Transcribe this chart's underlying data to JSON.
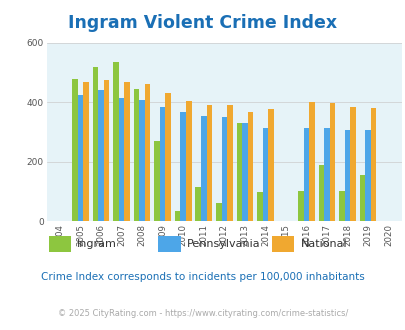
{
  "title": "Ingram Violent Crime Index",
  "years": [
    2004,
    2005,
    2006,
    2007,
    2008,
    2009,
    2010,
    2011,
    2012,
    2013,
    2014,
    2015,
    2016,
    2017,
    2018,
    2019,
    2020
  ],
  "ingram": [
    null,
    480,
    520,
    535,
    445,
    270,
    35,
    115,
    62,
    330,
    98,
    null,
    100,
    190,
    100,
    155,
    null
  ],
  "pennsylvania": [
    null,
    425,
    440,
    415,
    408,
    385,
    368,
    355,
    350,
    330,
    312,
    null,
    315,
    312,
    307,
    307,
    null
  ],
  "national": [
    null,
    470,
    475,
    468,
    460,
    430,
    405,
    390,
    390,
    368,
    376,
    null,
    400,
    396,
    383,
    380,
    null
  ],
  "ingram_color": "#8dc63f",
  "pennsylvania_color": "#4da6e8",
  "national_color": "#f0a830",
  "bg_color": "#e6f3f8",
  "title_color": "#1a6fb5",
  "label_color": "#555555",
  "subtitle_color": "#1a6fb5",
  "footer_color": "#aaaaaa",
  "ylabel_max": 600,
  "yticks": [
    0,
    200,
    400,
    600
  ],
  "subtitle": "Crime Index corresponds to incidents per 100,000 inhabitants",
  "footer": "© 2025 CityRating.com - https://www.cityrating.com/crime-statistics/",
  "bar_width": 0.27
}
